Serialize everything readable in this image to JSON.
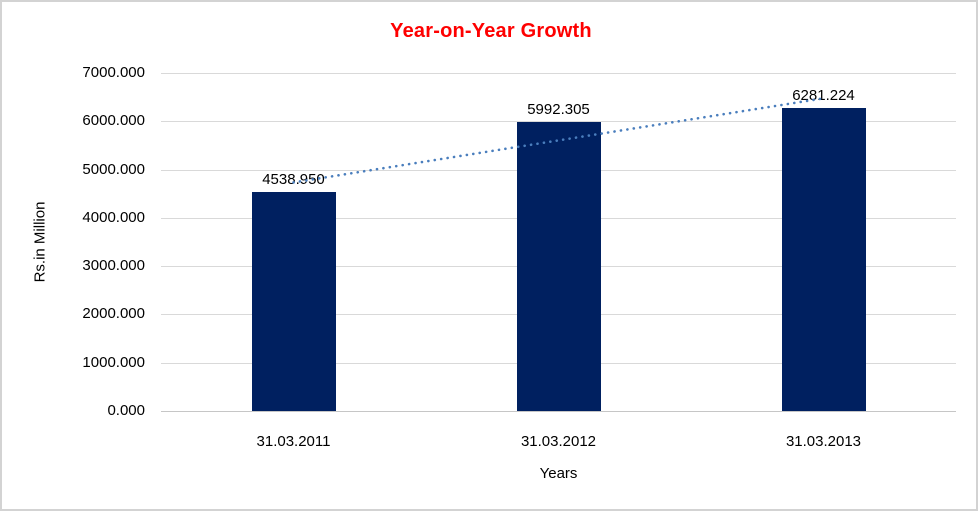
{
  "chart": {
    "title": "Year-on-Year Growth",
    "title_color": "#fe0000"
  },
  "chart_data": {
    "type": "bar",
    "title": "Year-on-Year Growth",
    "categories": [
      "31.03.2011",
      "31.03.2012",
      "31.03.2013"
    ],
    "values": [
      4538.95,
      5992.305,
      6281.224
    ],
    "data_labels": [
      "4538.950",
      "5992.305",
      "6281.224"
    ],
    "xlabel": "Years",
    "ylabel": "Rs.in Million",
    "ylim": [
      0,
      7000
    ],
    "ytick_step": 1000,
    "ytick_labels": [
      "0.000",
      "1000.000",
      "2000.000",
      "3000.000",
      "4000.000",
      "5000.000",
      "6000.000",
      "7000.000"
    ],
    "grid": true,
    "legend": false,
    "bar_color": "#002060",
    "trendline": {
      "style": "dotted",
      "color": "#4a7ebd",
      "start_value": 4733.0,
      "end_value": 6475.3
    }
  }
}
